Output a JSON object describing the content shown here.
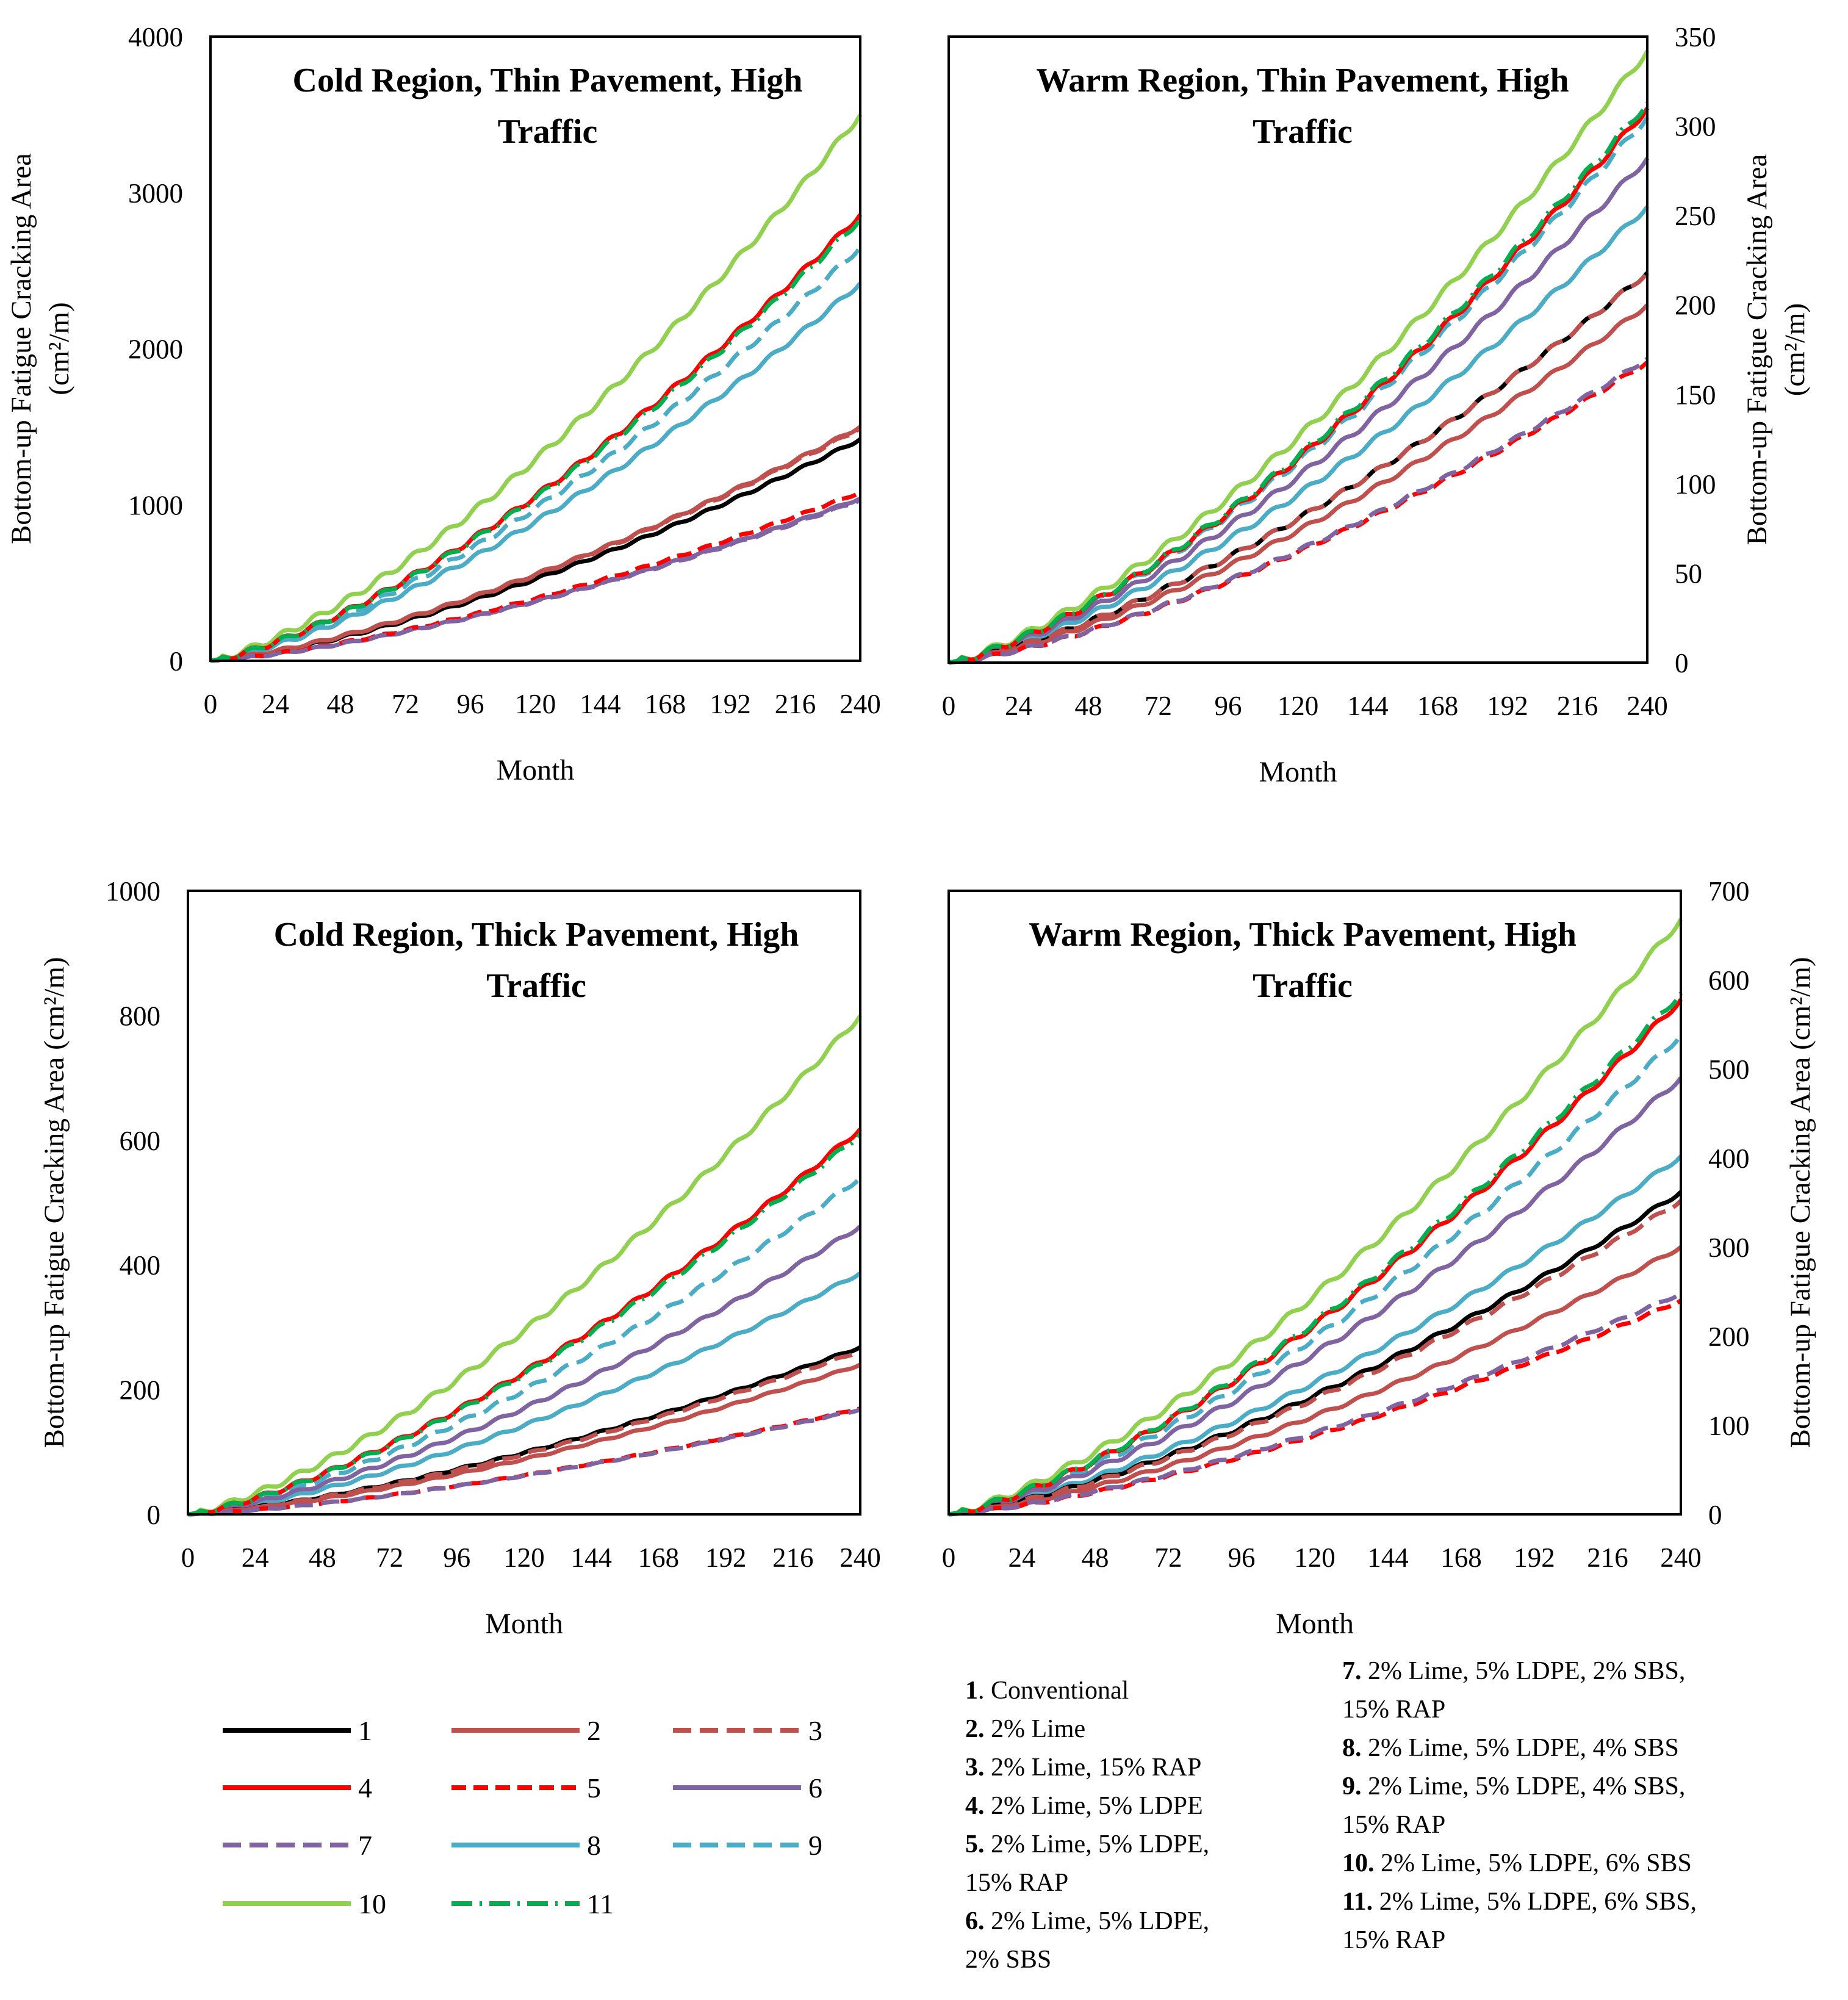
{
  "colors": {
    "s1": "#000000",
    "s2": "#c0504d",
    "s3": "#c0504d",
    "s4": "#ff0000",
    "s5": "#ff0000",
    "s6": "#8064a2",
    "s7": "#8064a2",
    "s8": "#4bacc6",
    "s9": "#4bacc6",
    "s10": "#92d050",
    "s11": "#00b050"
  },
  "chart_data": [
    {
      "type": "line",
      "title": "Cold Region, Thin Pavement, High Traffic",
      "title_lines": [
        "Cold Region, Thin Pavement, High",
        "Traffic"
      ],
      "xlabel": "Month",
      "ylabel_lines": [
        "Bottom-up Fatigue Cracking Area",
        "(cm²/m)"
      ],
      "y_axis_side": "left",
      "xlim": [
        0,
        240
      ],
      "ylim": [
        0,
        4000
      ],
      "xticks": [
        "0",
        "24",
        "48",
        "72",
        "96",
        "120",
        "144",
        "168",
        "192",
        "216",
        "240"
      ],
      "yticks": [
        "0",
        "1000",
        "2000",
        "3000",
        "4000"
      ],
      "series": [
        {
          "name": "1",
          "final": 1420
        },
        {
          "name": "2",
          "final": 1500
        },
        {
          "name": "3",
          "final": 1490
        },
        {
          "name": "4",
          "final": 2860
        },
        {
          "name": "5",
          "final": 1080
        },
        {
          "name": "6",
          "final": 1040
        },
        {
          "name": "7",
          "final": 1030
        },
        {
          "name": "8",
          "final": 2420
        },
        {
          "name": "9",
          "final": 2650
        },
        {
          "name": "10",
          "final": 3500
        },
        {
          "name": "11",
          "final": 2830
        }
      ]
    },
    {
      "type": "line",
      "title": "Warm Region, Thin Pavement, High Traffic",
      "title_lines": [
        "Warm Region, Thin Pavement, High",
        "Traffic"
      ],
      "xlabel": "Month",
      "ylabel_lines": [
        "Bottom-up Fatigue Cracking Area",
        "(cm²/m)"
      ],
      "y_axis_side": "right",
      "xlim": [
        0,
        240
      ],
      "ylim": [
        0,
        350
      ],
      "xticks": [
        "0",
        "24",
        "48",
        "72",
        "96",
        "120",
        "144",
        "168",
        "192",
        "216",
        "240"
      ],
      "yticks": [
        "0",
        "50",
        "100",
        "150",
        "200",
        "250",
        "300",
        "350"
      ],
      "series": [
        {
          "name": "1",
          "final": 218
        },
        {
          "name": "2",
          "final": 200
        },
        {
          "name": "3",
          "final": 218
        },
        {
          "name": "4",
          "final": 310
        },
        {
          "name": "5",
          "final": 168
        },
        {
          "name": "6",
          "final": 282
        },
        {
          "name": "7",
          "final": 170
        },
        {
          "name": "8",
          "final": 255
        },
        {
          "name": "9",
          "final": 305
        },
        {
          "name": "10",
          "final": 342
        },
        {
          "name": "11",
          "final": 313
        }
      ]
    },
    {
      "type": "line",
      "title": "Cold Region, Thick Pavement, High Traffic",
      "title_lines": [
        "Cold Region, Thick Pavement, High",
        "Traffic"
      ],
      "xlabel": "Month",
      "ylabel_lines": [
        "Bottom-up Fatigue Cracking Area (cm²/m)"
      ],
      "y_axis_side": "left",
      "xlim": [
        0,
        240
      ],
      "ylim": [
        0,
        1000
      ],
      "xticks": [
        "0",
        "24",
        "48",
        "72",
        "96",
        "120",
        "144",
        "168",
        "192",
        "216",
        "240"
      ],
      "yticks": [
        "0",
        "200",
        "400",
        "600",
        "800",
        "1000"
      ],
      "series": [
        {
          "name": "1",
          "final": 268
        },
        {
          "name": "2",
          "final": 240
        },
        {
          "name": "3",
          "final": 262
        },
        {
          "name": "4",
          "final": 618
        },
        {
          "name": "5",
          "final": 170
        },
        {
          "name": "6",
          "final": 462
        },
        {
          "name": "7",
          "final": 168
        },
        {
          "name": "8",
          "final": 387
        },
        {
          "name": "9",
          "final": 540
        },
        {
          "name": "10",
          "final": 800
        },
        {
          "name": "11",
          "final": 610
        }
      ]
    },
    {
      "type": "line",
      "title": "Warm Region, Thick Pavement, High Traffic",
      "title_lines": [
        "Warm Region, Thick Pavement, High",
        "Traffic"
      ],
      "xlabel": "Month",
      "ylabel_lines": [
        "Bottom-up Fatigue Cracking Area (cm²/m)"
      ],
      "y_axis_side": "right",
      "xlim": [
        0,
        240
      ],
      "ylim": [
        0,
        700
      ],
      "xticks": [
        "0",
        "24",
        "48",
        "72",
        "96",
        "120",
        "144",
        "168",
        "192",
        "216",
        "240"
      ],
      "yticks": [
        "0",
        "100",
        "200",
        "300",
        "400",
        "500",
        "600",
        "700"
      ],
      "series": [
        {
          "name": "1",
          "final": 362
        },
        {
          "name": "2",
          "final": 300
        },
        {
          "name": "3",
          "final": 352
        },
        {
          "name": "4",
          "final": 578
        },
        {
          "name": "5",
          "final": 240
        },
        {
          "name": "6",
          "final": 490
        },
        {
          "name": "7",
          "final": 248
        },
        {
          "name": "8",
          "final": 402
        },
        {
          "name": "9",
          "final": 538
        },
        {
          "name": "10",
          "final": 668
        },
        {
          "name": "11",
          "final": 585
        }
      ]
    }
  ],
  "legend": {
    "items": [
      "1",
      "2",
      "3",
      "4",
      "5",
      "6",
      "7",
      "8",
      "9",
      "10",
      "11"
    ]
  },
  "descriptions": {
    "left": [
      {
        "num": "1",
        "text": ". Conventional"
      },
      {
        "num": "2.",
        "text": " 2% Lime"
      },
      {
        "num": "3.",
        "text": " 2% Lime, 15% RAP"
      },
      {
        "num": "4.",
        "text": " 2% Lime, 5% LDPE"
      },
      {
        "num": "5.",
        "text": " 2% Lime, 5% LDPE,",
        "cont": "15% RAP"
      },
      {
        "num": "6.",
        "text": " 2% Lime, 5% LDPE,",
        "cont": "2% SBS"
      }
    ],
    "right": [
      {
        "num": "7.",
        "text": " 2% Lime, 5% LDPE, 2% SBS,",
        "cont": "15% RAP"
      },
      {
        "num": "8.",
        "text": " 2% Lime, 5% LDPE, 4% SBS"
      },
      {
        "num": "9.",
        "text": " 2% Lime, 5% LDPE, 4% SBS,",
        "cont": "15% RAP"
      },
      {
        "num": "10.",
        "text": " 2% Lime, 5% LDPE, 6% SBS"
      },
      {
        "num": "11.",
        "text": " 2% Lime, 5% LDPE, 6% SBS,",
        "cont": "15% RAP"
      }
    ]
  }
}
